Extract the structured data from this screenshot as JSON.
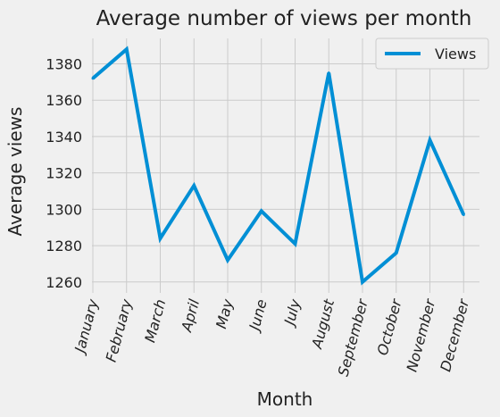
{
  "chart_data": {
    "type": "line",
    "title": "Average number of views per month",
    "xlabel": "Month",
    "ylabel": "Average views",
    "categories": [
      "January",
      "February",
      "March",
      "April",
      "May",
      "June",
      "July",
      "August",
      "September",
      "October",
      "November",
      "December"
    ],
    "series": [
      {
        "name": "Views",
        "color": "#008fd5",
        "values": [
          1372,
          1388,
          1284,
          1313,
          1272,
          1299,
          1281,
          1375,
          1260,
          1276,
          1338,
          1297
        ]
      }
    ],
    "yticks": [
      1260,
      1280,
      1300,
      1320,
      1340,
      1360,
      1380
    ],
    "ylim": [
      1254,
      1394
    ],
    "grid": true,
    "legend": "top-right",
    "background": "#f0f0f0"
  }
}
